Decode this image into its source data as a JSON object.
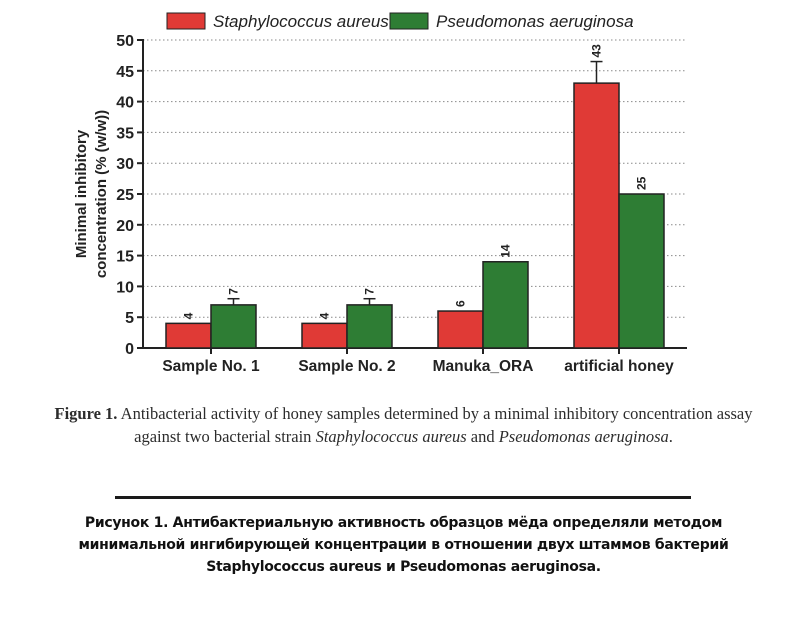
{
  "chart_data": {
    "type": "bar",
    "categories": [
      "Sample No. 1",
      "Sample No. 2",
      "Manuka_ORA",
      "artificial honey"
    ],
    "series": [
      {
        "name": "Staphylococcus aureus",
        "color": "#e03a36",
        "values": [
          4,
          4,
          6,
          43
        ],
        "labels": [
          "4",
          "4",
          "6",
          "43"
        ],
        "errors": [
          0,
          0,
          0,
          3.5
        ]
      },
      {
        "name": "Pseudomonas aeruginosa",
        "color": "#2e7d34",
        "values": [
          7,
          7,
          14,
          25
        ],
        "labels": [
          "7",
          "7",
          "14",
          "25"
        ],
        "errors": [
          1,
          1,
          0,
          0
        ]
      }
    ],
    "ylabel_line1": "Minimal inhibitory",
    "ylabel_line2": "concentration (% (w/w))",
    "ylim": [
      0,
      50
    ],
    "yticks": [
      "0",
      "5",
      "10",
      "15",
      "20",
      "25",
      "30",
      "35",
      "40",
      "45",
      "50"
    ],
    "grid": "dotted horizontal",
    "legend_position": "top"
  },
  "caption_en": {
    "figure_label": "Figure 1.",
    "text_before": " Antibacterial activity of honey samples determined by a minimal inhibitory concentration assay against two bacterial strain ",
    "species_1": "Staphylococcus aureus",
    "conjunction": " and ",
    "species_2": "Pseudomonas aeruginosa",
    "end": "."
  },
  "caption_ru": {
    "line1": "Рисунок 1. Антибактериальную активность образцов мёда определяли методом",
    "line2": "минимальной ингибирующей концентрации в отношении двух штаммов бактерий",
    "line3": "Staphylococcus aureus и Pseudomonas aeruginosa."
  }
}
